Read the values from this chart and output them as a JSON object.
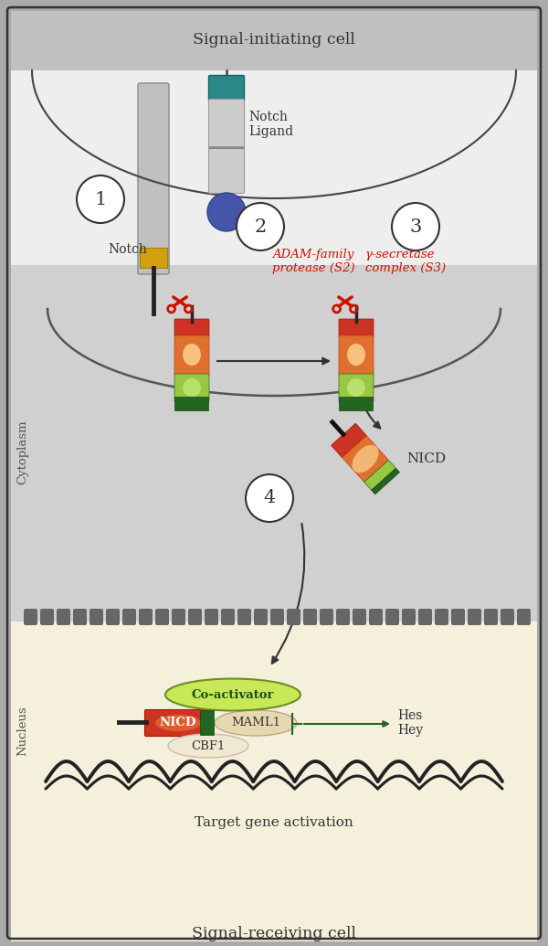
{
  "bg_outer": "#aaaaaa",
  "bg_init_cell": "#c8c8c8",
  "bg_white": "#eeeeee",
  "bg_cyto": "#d0d0d0",
  "bg_nucleus": "#f5f0dc",
  "teal": "#2a8888",
  "gold": "#d4a010",
  "red_top": "#cc3322",
  "orange_mid": "#e87030",
  "green_light": "#88c040",
  "green_dark": "#226622",
  "blue_sphere": "#4455aa",
  "coact_green": "#b8dd50",
  "coact_edge": "#507020",
  "nicd_red": "#cc3322",
  "maml_tan": "#e8d8b0",
  "cbf1_cream": "#f0e8d0",
  "dna_dark": "#222222",
  "text_dark": "#333333",
  "text_red": "#cc1100",
  "text_green": "#226622",
  "label_sig_init": "Signal-initiating cell",
  "label_sig_recv": "Signal-receiving cell",
  "label_cytoplasm": "Cytoplasm",
  "label_nucleus": "Nucleus",
  "label_notch": "Notch",
  "label_notch_ligand": "Notch\nLigand",
  "label_adam": "ADAM-family\nprotease (S2)",
  "label_gsec": "γ-secretase\ncomplex (S3)",
  "label_nicd": "NICD",
  "label_coactivator": "Co-activator",
  "label_nicd_nuc": "NICD",
  "label_maml1": "MAML1",
  "label_cbf1": "CBF1",
  "label_hes": "Hes",
  "label_hey": "Hey",
  "label_target": "Target gene activation"
}
